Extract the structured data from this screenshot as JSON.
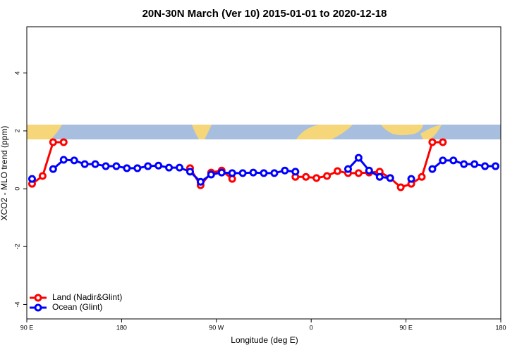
{
  "chart_data": {
    "type": "line",
    "title": "20N-30N March (Ver 10)   2015-01-01 to 2020-12-18",
    "xlabel": "Longitude (deg E)",
    "ylabel": "XCO2 - MLO trend (ppm)",
    "x": [
      95,
      105,
      115,
      125,
      135,
      145,
      155,
      165,
      175,
      185,
      195,
      205,
      215,
      225,
      235,
      245,
      255,
      265,
      275,
      285,
      295,
      305,
      315,
      325,
      335,
      345,
      355,
      365,
      375,
      385,
      395,
      405,
      415,
      425,
      435,
      445,
      455,
      465,
      475,
      485,
      495,
      505,
      515,
      525,
      535
    ],
    "series": [
      {
        "name": "Land (Nadir&Glint)",
        "color": "#ff0000",
        "values": [
          0.17,
          0.44,
          1.61,
          1.61,
          null,
          null,
          null,
          null,
          null,
          null,
          null,
          null,
          null,
          null,
          null,
          0.71,
          0.12,
          0.56,
          0.63,
          0.34,
          null,
          null,
          null,
          null,
          null,
          0.41,
          0.41,
          0.37,
          0.44,
          0.61,
          0.54,
          0.54,
          0.56,
          0.59,
          0.37,
          0.05,
          0.17,
          0.41,
          1.61,
          1.61,
          null,
          null,
          null,
          null,
          null
        ]
      },
      {
        "name": "Ocean (Glint)",
        "color": "#0000ff",
        "values": [
          0.34,
          null,
          0.68,
          1.0,
          0.98,
          0.85,
          0.85,
          0.78,
          0.78,
          0.71,
          0.71,
          0.78,
          0.8,
          0.73,
          0.73,
          0.59,
          0.24,
          0.49,
          0.56,
          0.54,
          0.54,
          0.56,
          0.54,
          0.54,
          0.63,
          0.59,
          null,
          null,
          null,
          null,
          0.68,
          1.07,
          0.63,
          0.41,
          0.37,
          null,
          0.34,
          null,
          0.68,
          0.98,
          0.98,
          0.85,
          0.85,
          0.78,
          0.78
        ]
      }
    ],
    "xlim": [
      90,
      540
    ],
    "xticks": [
      {
        "value": 90,
        "label": "90 E"
      },
      180,
      {
        "value": 270,
        "label": "90 W"
      },
      {
        "value": 360,
        "label": "0"
      },
      {
        "value": 450,
        "label": "90 E"
      },
      {
        "value": 540,
        "label": "180"
      }
    ],
    "ylim": [
      -4.5,
      5.6
    ],
    "yticks": [
      -4,
      -2,
      0,
      2,
      4
    ],
    "grid": false,
    "legend": "bottom-left"
  }
}
